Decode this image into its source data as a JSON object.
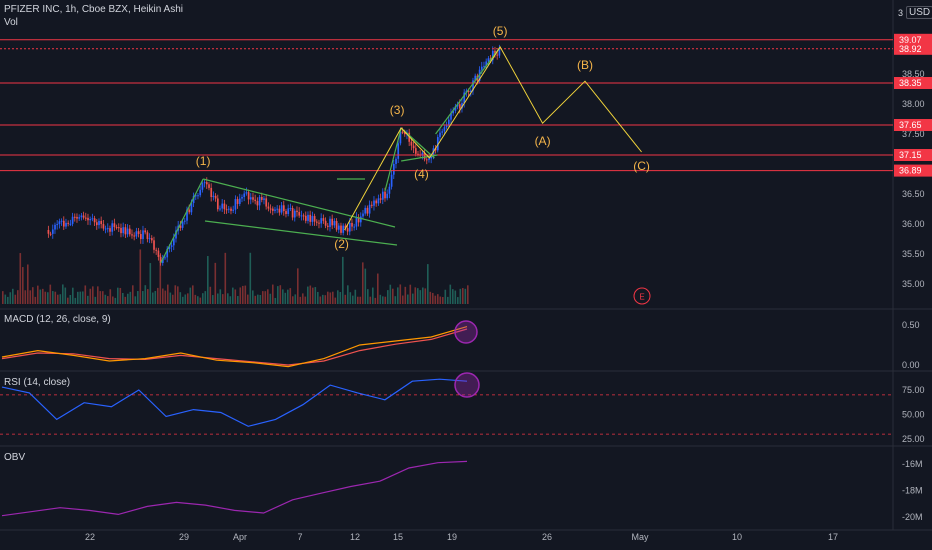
{
  "header": {
    "symbol": "PFIZER INC",
    "interval": "1h",
    "exchange": "Cboe BZX",
    "style": "Heikin Ashi",
    "volume_label": "Vol",
    "currency": "USD",
    "top_axis_clip": "3"
  },
  "indicators": {
    "macd": "MACD (12, 26, close, 9)",
    "rsi": "RSI (14, close)",
    "obv": "OBV"
  },
  "event_marker": "E",
  "colors": {
    "background": "#131722",
    "up": "#2962ff",
    "down": "#ef5350",
    "level_line": "#f23645",
    "wave": "#f0d33b",
    "pattern": "#4caf50",
    "wave_label": "#f5b54a",
    "macd_line": "#ff9800",
    "macd_signal": "#ef5350",
    "rsi_line": "#2962ff",
    "obv_line": "#9c27b0",
    "highlight": "#9c27b0"
  },
  "chart_data": [
    {
      "type": "candlestick",
      "title": "PFIZER INC, 1h, Cboe BZX, Heikin Ashi",
      "y_ticks": [
        35.0,
        35.5,
        36.0,
        36.5,
        37.5,
        38.0,
        38.5
      ],
      "x_ticks": [
        "22",
        "29",
        "Apr",
        "7",
        "12",
        "15",
        "19",
        "26",
        "May",
        "10",
        "17"
      ],
      "price_levels": [
        {
          "label": "39.07",
          "value": 39.07,
          "style": "solid"
        },
        {
          "label": "38.92",
          "value": 38.92,
          "style": "dotted"
        },
        {
          "label": "38.35",
          "value": 38.35,
          "style": "solid"
        },
        {
          "label": "37.65",
          "value": 37.65,
          "style": "solid"
        },
        {
          "label": "37.15",
          "value": 37.15,
          "style": "solid"
        },
        {
          "label": "36.89",
          "value": 36.89,
          "style": "solid"
        }
      ],
      "price_path": [
        {
          "x": "Mar 19",
          "y": 35.9
        },
        {
          "x": "Mar 21",
          "y": 36.1
        },
        {
          "x": "Mar 24",
          "y": 35.9
        },
        {
          "x": "Mar 26",
          "y": 35.8
        },
        {
          "x": "Mar 27",
          "y": 35.35
        },
        {
          "x": "Mar 30",
          "y": 36.75
        },
        {
          "x": "Mar 31",
          "y": 36.3
        },
        {
          "x": "Apr 1",
          "y": 36.3
        },
        {
          "x": "Apr 2",
          "y": 36.45
        },
        {
          "x": "Apr 5",
          "y": 36.2
        },
        {
          "x": "Apr 8",
          "y": 36.0
        },
        {
          "x": "Apr 9",
          "y": 35.9
        },
        {
          "x": "Apr 12",
          "y": 36.55
        },
        {
          "x": "Apr 13",
          "y": 37.6
        },
        {
          "x": "Apr 14",
          "y": 37.2
        },
        {
          "x": "Apr 15",
          "y": 37.1
        },
        {
          "x": "Apr 16",
          "y": 37.6
        },
        {
          "x": "Apr 19",
          "y": 38.7
        },
        {
          "x": "Apr 20",
          "y": 38.95
        }
      ],
      "waves": [
        {
          "label": "(1)",
          "x": "Mar 30",
          "y": 36.75
        },
        {
          "label": "(2)",
          "x": "Apr 9",
          "y": 35.9
        },
        {
          "label": "(3)",
          "x": "Apr 13",
          "y": 37.6
        },
        {
          "label": "(4)",
          "x": "Apr 15",
          "y": 37.1
        },
        {
          "label": "(5)",
          "x": "Apr 20",
          "y": 38.95
        },
        {
          "label": "(A)",
          "x": "Apr 23",
          "y": 37.68
        },
        {
          "label": "(B)",
          "x": "Apr 26",
          "y": 38.38
        },
        {
          "label": "(C)",
          "x": "Apr 30",
          "y": 37.2
        }
      ]
    },
    {
      "type": "line",
      "title": "MACD (12, 26, close, 9)",
      "y_ticks": [
        0.0,
        0.5
      ],
      "series": [
        {
          "name": "MACD",
          "values": [
            0.1,
            0.18,
            0.12,
            0.05,
            0.08,
            0.15,
            0.06,
            0.03,
            -0.02,
            0.08,
            0.25,
            0.3,
            0.35,
            0.48
          ]
        },
        {
          "name": "Signal",
          "values": [
            0.08,
            0.15,
            0.14,
            0.08,
            0.07,
            0.12,
            0.08,
            0.04,
            0.0,
            0.05,
            0.18,
            0.26,
            0.32,
            0.45
          ]
        }
      ]
    },
    {
      "type": "line",
      "title": "RSI (14, close)",
      "y_ticks": [
        25.0,
        50.0,
        75.0
      ],
      "bands": [
        70,
        30
      ],
      "series": [
        {
          "name": "RSI",
          "values": [
            78,
            72,
            45,
            62,
            58,
            75,
            48,
            55,
            52,
            38,
            45,
            60,
            80,
            72,
            65,
            84,
            86,
            84
          ]
        }
      ]
    },
    {
      "type": "line",
      "title": "OBV",
      "y_ticks": [
        "-16M",
        "-18M",
        "-20M"
      ],
      "series": [
        {
          "name": "OBV",
          "values": [
            -19.9,
            -19.6,
            -19.3,
            -19.5,
            -19.8,
            -19.2,
            -18.9,
            -19.1,
            -19.5,
            -19.7,
            -18.7,
            -18.2,
            -17.7,
            -17.3,
            -16.3,
            -15.9,
            -15.8
          ]
        }
      ]
    }
  ]
}
